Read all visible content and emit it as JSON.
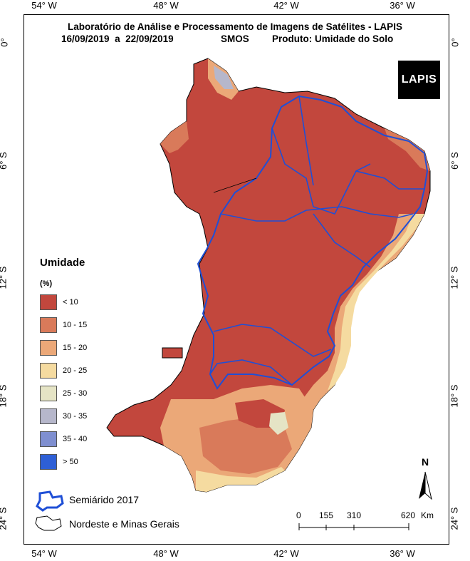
{
  "title": {
    "line1": "Laboratório de Análise e Processamento de Imagens de Satélites - LAPIS",
    "line2_dates": "16/09/2019  a  22/09/2019",
    "line2_sensor": "SMOS",
    "line2_product": "Produto: Umidade do Solo"
  },
  "axes": {
    "longitude_labels": [
      "54° W",
      "48° W",
      "42° W",
      "36° W"
    ],
    "latitude_labels": [
      "0°",
      "6° S",
      "12° S",
      "18° S",
      "24° S"
    ]
  },
  "logo": {
    "text": "LAPIS"
  },
  "legend": {
    "title": "Umidade",
    "unit": "(%)",
    "classes": [
      {
        "label": "< 10",
        "color": "#c2473d"
      },
      {
        "label": "10 - 15",
        "color": "#d97a5a"
      },
      {
        "label": "15 - 20",
        "color": "#eba878"
      },
      {
        "label": "20 - 25",
        "color": "#f5dba0"
      },
      {
        "label": "25 - 30",
        "color": "#e5e4c5"
      },
      {
        "label": "30 - 35",
        "color": "#b6b7cb"
      },
      {
        "label": "35 - 40",
        "color": "#7f8fd0"
      },
      {
        "label": "> 50",
        "color": "#2e5fd6"
      }
    ]
  },
  "boundaries": {
    "semiarid_label": "Semiárido 2017",
    "region_label": "Nordeste e Minas Gerais"
  },
  "scale_bar": {
    "labels": [
      "0",
      "155",
      "310",
      "620"
    ],
    "unit": "Km"
  },
  "north_arrow": {
    "label": "N"
  }
}
